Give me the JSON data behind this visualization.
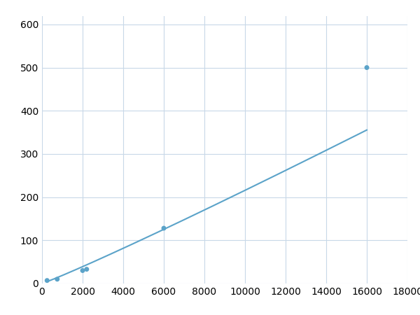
{
  "x_data": [
    250,
    750,
    2000,
    2200,
    6000,
    16000
  ],
  "y_data": [
    7,
    10,
    30,
    33,
    128,
    500
  ],
  "line_color": "#5ba3c9",
  "marker_color": "#5ba3c9",
  "marker_size": 5,
  "line_width": 1.5,
  "xlim": [
    0,
    18000
  ],
  "ylim": [
    0,
    620
  ],
  "xticks": [
    0,
    2000,
    4000,
    6000,
    8000,
    10000,
    12000,
    14000,
    16000,
    18000
  ],
  "yticks": [
    0,
    100,
    200,
    300,
    400,
    500,
    600
  ],
  "grid_color": "#c8d8e8",
  "background_color": "#ffffff",
  "tick_fontsize": 10,
  "figsize": [
    6.0,
    4.5
  ],
  "dpi": 100
}
